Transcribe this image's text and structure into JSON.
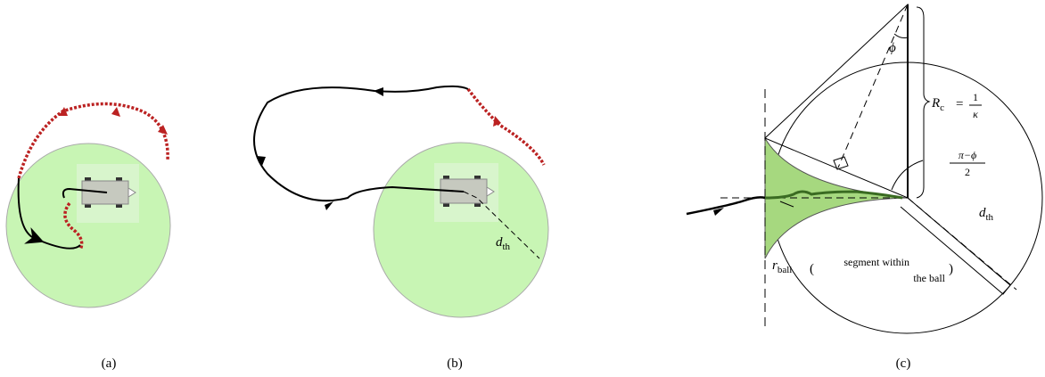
{
  "panels": [
    {
      "caption": "(a)"
    },
    {
      "caption": "(b)",
      "labels": {
        "d_th": {
          "symbol": "d",
          "subscript": "th"
        }
      }
    },
    {
      "caption": "(c)",
      "labels": {
        "phi": "ϕ",
        "radius": {
          "symbol": "R",
          "subscript": "c",
          "equals": "=",
          "numerator": "1",
          "denominator": "κ"
        },
        "angle": {
          "numerator": "π−ϕ",
          "denominator": "2"
        },
        "d_th": {
          "symbol": "d",
          "subscript": "th"
        },
        "r_ball": {
          "symbol": "r",
          "subscript": "ball"
        },
        "segment_note": [
          "segment within",
          "the ball"
        ]
      }
    }
  ]
}
